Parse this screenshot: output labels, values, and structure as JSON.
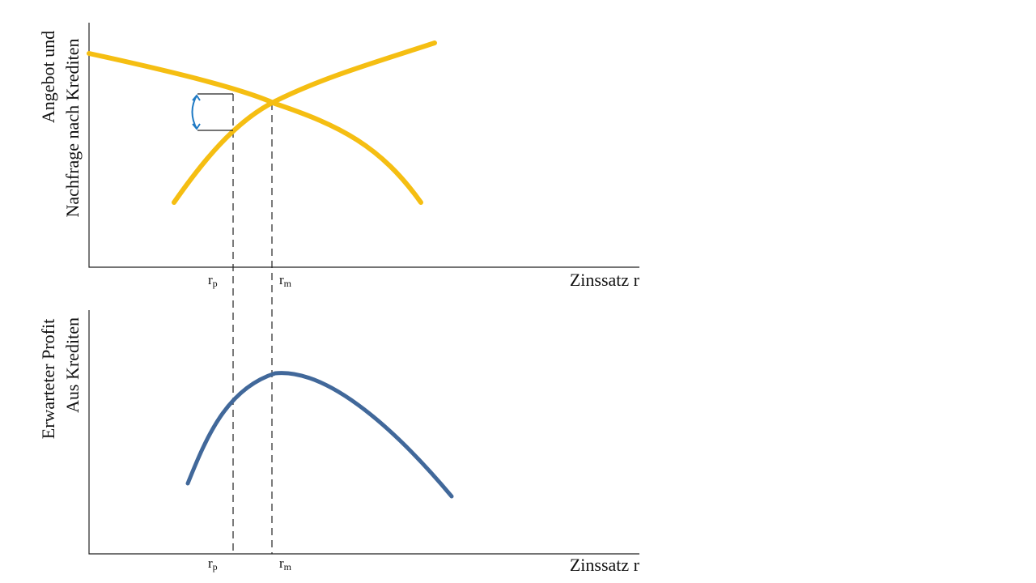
{
  "top_panel": {
    "y_label": [
      "Angebot und",
      "Nachfrage nach Krediten"
    ],
    "x_label": "Zinssatz r",
    "markers": [
      {
        "base": "r",
        "sub": "p"
      },
      {
        "base": "r",
        "sub": "m"
      }
    ]
  },
  "bottom_panel": {
    "y_label": [
      "Erwarteter Profit",
      "Aus Krediten"
    ],
    "x_label": "Zinssatz r",
    "markers": [
      {
        "base": "r",
        "sub": "p"
      },
      {
        "base": "r",
        "sub": "m"
      }
    ]
  }
}
